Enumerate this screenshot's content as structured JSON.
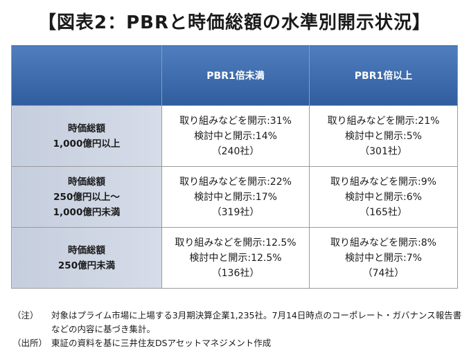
{
  "title": "【図表2：PBRと時価総額の水準別開示状況】",
  "table": {
    "columns": [
      "PBR1倍未満",
      "PBR1倍以上"
    ],
    "rows": [
      {
        "label": [
          "時価総額",
          "1,000億円以上"
        ],
        "cells": [
          [
            "取り組みなどを開示:31%",
            "検討中と開示:14%",
            "（240社）"
          ],
          [
            "取り組みなどを開示:21%",
            "検討中と開示:5%",
            "（301社）"
          ]
        ]
      },
      {
        "label": [
          "時価総額",
          "250億円以上～",
          "1,000億円未満"
        ],
        "cells": [
          [
            "取り組みなどを開示:22%",
            "検討中と開示:17%",
            "（319社）"
          ],
          [
            "取り組みなどを開示:9%",
            "検討中と開示:6%",
            "（165社）"
          ]
        ]
      },
      {
        "label": [
          "時価総額",
          "250億円未満"
        ],
        "cells": [
          [
            "取り組みなどを開示:12.5%",
            "検討中と開示:12.5%",
            "（136社）"
          ],
          [
            "取り組みなどを開示:8%",
            "検討中と開示:7%",
            "（74社）"
          ]
        ]
      }
    ]
  },
  "notes": [
    {
      "tag": "（注）",
      "text": "対象はプライム市場に上場する3月期決算企業1,235社。7月14日時点のコーポレート・ガバナンス報告書などの内容に基づき集計。"
    },
    {
      "tag": "（出所）",
      "text": "東証の資料を基に三井住友DSアセットマネジメント作成"
    }
  ]
}
